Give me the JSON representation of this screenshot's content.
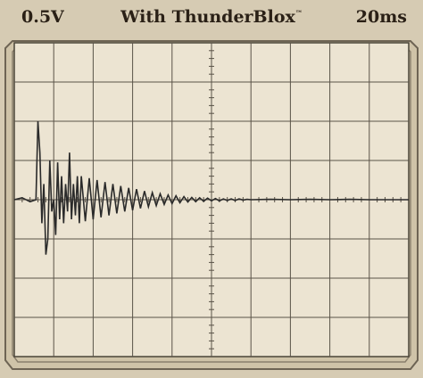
{
  "header": {
    "left_label": "0.5V",
    "title": "With ThunderBlox",
    "trademark": "™",
    "right_label": "20ms"
  },
  "colors": {
    "background": "#d6cbb3",
    "screen": "#ece4d2",
    "grid": "#5a5348",
    "trace": "#2a2a2a",
    "text": "#2a2016"
  },
  "chart_data": {
    "type": "line",
    "title": "With ThunderBlox",
    "volts_per_division": "0.5V",
    "time_per_division": "20ms",
    "grid": true,
    "divisions": {
      "x": 10,
      "y": 8
    },
    "xlim": [
      0,
      10
    ],
    "ylim": [
      -4,
      4
    ],
    "series": [
      {
        "values_description": "",
        "x": [
          0.0,
          0.2,
          0.4,
          0.55,
          0.6,
          0.65,
          0.7,
          0.75,
          0.8,
          0.85,
          0.9,
          0.95,
          1.0,
          1.05,
          1.1,
          1.15,
          1.2,
          1.25,
          1.3,
          1.35,
          1.4,
          1.45,
          1.5,
          1.55,
          1.6,
          1.65,
          1.7,
          1.8,
          1.9,
          2.0,
          2.1,
          2.2,
          2.3,
          2.4,
          2.5,
          2.6,
          2.7,
          2.8,
          2.9,
          3.0,
          3.1,
          3.2,
          3.3,
          3.4,
          3.5,
          3.6,
          3.7,
          3.8,
          3.9,
          4.0,
          4.1,
          4.2,
          4.3,
          4.4,
          4.5,
          4.6,
          4.7,
          4.8,
          4.9,
          5.0,
          5.1,
          5.2,
          5.3,
          5.4,
          5.5,
          5.6,
          5.7,
          5.8,
          5.9,
          6.0,
          6.5,
          7.0,
          7.5,
          8.0,
          8.5,
          9.0,
          9.5,
          10.0
        ],
        "y": [
          0.0,
          0.05,
          -0.05,
          0.0,
          2.0,
          1.2,
          -0.6,
          0.4,
          -1.4,
          -1.0,
          1.0,
          -0.3,
          0.0,
          -0.9,
          0.95,
          -0.5,
          0.6,
          -0.6,
          0.4,
          -0.3,
          1.2,
          -0.5,
          0.4,
          -0.4,
          0.6,
          -0.6,
          0.6,
          -0.55,
          0.55,
          -0.5,
          0.5,
          -0.45,
          0.45,
          -0.4,
          0.4,
          -0.35,
          0.35,
          -0.3,
          0.3,
          -0.27,
          0.27,
          -0.22,
          0.22,
          -0.18,
          0.18,
          -0.15,
          0.15,
          -0.12,
          0.12,
          -0.1,
          0.1,
          -0.08,
          0.08,
          -0.06,
          0.06,
          -0.05,
          0.05,
          -0.04,
          0.04,
          -0.03,
          0.03,
          -0.03,
          0.02,
          -0.02,
          0.02,
          -0.02,
          0.02,
          -0.01,
          0.01,
          0.0,
          0.01,
          0.0,
          0.01,
          0.0,
          0.01,
          0.0,
          0.0,
          0.0
        ]
      }
    ]
  }
}
